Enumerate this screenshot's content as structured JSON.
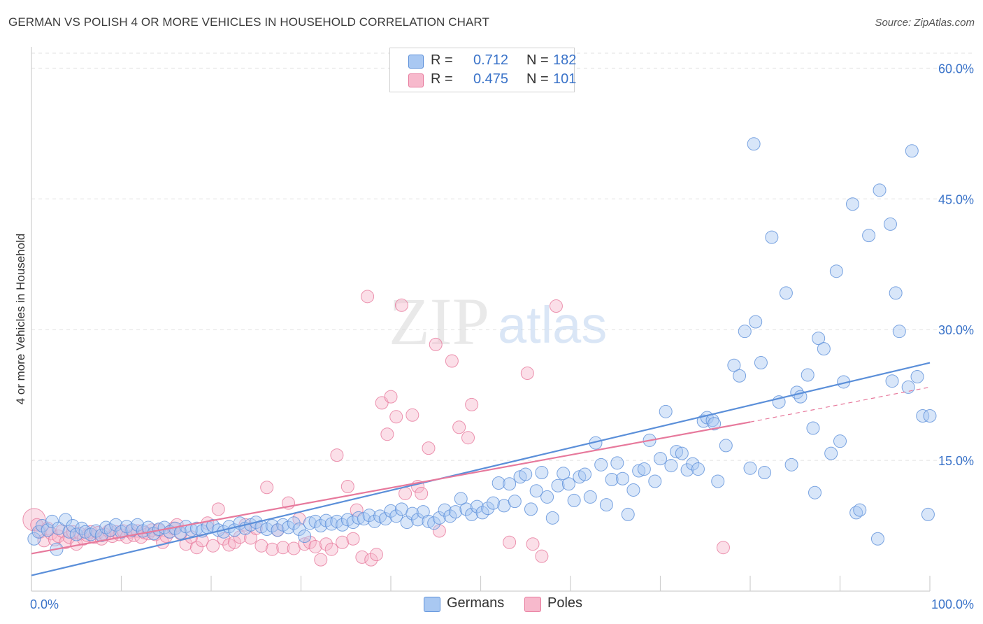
{
  "header": {
    "title": "GERMAN VS POLISH 4 OR MORE VEHICLES IN HOUSEHOLD CORRELATION CHART",
    "source": "Source: ZipAtlas.com"
  },
  "watermark": {
    "zip": "ZIP",
    "atlas": "atlas"
  },
  "stats_legend": [
    {
      "series": "Germans",
      "r_label": "R =",
      "r_value": "0.712",
      "n_label": "N =",
      "n_value": "182",
      "color": "#a9c8f2"
    },
    {
      "series": "Poles",
      "r_label": "R =",
      "r_value": "0.475",
      "n_label": "N =",
      "n_value": "101",
      "color": "#f7b9cc"
    }
  ],
  "legend": [
    {
      "label": "Germans",
      "color": "#a9c8f2"
    },
    {
      "label": "Poles",
      "color": "#f7b9cc"
    }
  ],
  "chart_data": {
    "type": "scatter",
    "title": "GERMAN VS POLISH 4 OR MORE VEHICLES IN HOUSEHOLD CORRELATION CHART",
    "xlabel": "",
    "ylabel": "4 or more Vehicles in Household",
    "xlim": [
      0,
      100
    ],
    "ylim": [
      0,
      63
    ],
    "x_tick_labels": [
      "0.0%",
      "100.0%"
    ],
    "y_ticks": [
      15,
      30,
      45,
      60
    ],
    "y_tick_labels": [
      "15.0%",
      "30.0%",
      "45.0%",
      "60.0%"
    ],
    "grid": true,
    "legend_position": "bottom",
    "series": [
      {
        "name": "Germans",
        "color": "#5b8fd9",
        "fill": "#a9c8f2",
        "trend": {
          "x": [
            0,
            100
          ],
          "y": [
            1.8,
            26.2
          ]
        },
        "points": [
          [
            0.3,
            6.0
          ],
          [
            0.8,
            6.8
          ],
          [
            1.2,
            7.5
          ],
          [
            1.8,
            7.0
          ],
          [
            2.3,
            8.0
          ],
          [
            2.8,
            4.8
          ],
          [
            3.0,
            7.2
          ],
          [
            3.8,
            8.2
          ],
          [
            4.2,
            6.8
          ],
          [
            4.6,
            7.5
          ],
          [
            5.0,
            6.5
          ],
          [
            5.6,
            7.2
          ],
          [
            6.0,
            6.8
          ],
          [
            6.6,
            6.5
          ],
          [
            7.2,
            6.9
          ],
          [
            7.8,
            6.4
          ],
          [
            8.3,
            7.3
          ],
          [
            8.8,
            7.0
          ],
          [
            9.4,
            7.6
          ],
          [
            10.0,
            6.8
          ],
          [
            10.6,
            7.4
          ],
          [
            11.2,
            7.0
          ],
          [
            11.8,
            7.6
          ],
          [
            12.4,
            6.9
          ],
          [
            13.0,
            7.3
          ],
          [
            13.6,
            6.6
          ],
          [
            14.2,
            7.1
          ],
          [
            14.8,
            7.3
          ],
          [
            15.4,
            6.8
          ],
          [
            16.0,
            7.2
          ],
          [
            16.6,
            6.7
          ],
          [
            17.2,
            7.4
          ],
          [
            17.8,
            7.0
          ],
          [
            18.4,
            7.2
          ],
          [
            19.0,
            6.9
          ],
          [
            19.6,
            7.3
          ],
          [
            20.2,
            7.5
          ],
          [
            20.8,
            7.0
          ],
          [
            21.4,
            6.8
          ],
          [
            22.0,
            7.4
          ],
          [
            22.6,
            7.0
          ],
          [
            23.2,
            7.8
          ],
          [
            23.8,
            7.2
          ],
          [
            24.4,
            7.6
          ],
          [
            25.0,
            7.9
          ],
          [
            25.6,
            7.4
          ],
          [
            26.2,
            7.1
          ],
          [
            26.8,
            7.5
          ],
          [
            27.4,
            7.0
          ],
          [
            28.0,
            7.6
          ],
          [
            28.6,
            7.3
          ],
          [
            29.2,
            7.8
          ],
          [
            29.8,
            7.1
          ],
          [
            30.4,
            6.3
          ],
          [
            31.0,
            7.8
          ],
          [
            31.6,
            8.0
          ],
          [
            32.2,
            7.5
          ],
          [
            32.8,
            8.1
          ],
          [
            33.4,
            7.7
          ],
          [
            34.0,
            8.0
          ],
          [
            34.6,
            7.6
          ],
          [
            35.2,
            8.2
          ],
          [
            35.8,
            7.9
          ],
          [
            36.4,
            8.4
          ],
          [
            37.0,
            8.3
          ],
          [
            37.6,
            8.7
          ],
          [
            38.2,
            8.0
          ],
          [
            38.8,
            8.6
          ],
          [
            39.4,
            8.3
          ],
          [
            40.0,
            9.2
          ],
          [
            40.6,
            8.6
          ],
          [
            41.2,
            9.4
          ],
          [
            41.8,
            7.9
          ],
          [
            42.4,
            8.9
          ],
          [
            43.0,
            8.2
          ],
          [
            43.6,
            9.1
          ],
          [
            44.2,
            8.0
          ],
          [
            44.8,
            7.8
          ],
          [
            45.4,
            8.4
          ],
          [
            46.0,
            9.3
          ],
          [
            46.6,
            8.6
          ],
          [
            47.2,
            9.1
          ],
          [
            47.8,
            10.6
          ],
          [
            48.4,
            9.4
          ],
          [
            49.0,
            8.8
          ],
          [
            49.6,
            9.7
          ],
          [
            50.2,
            9.0
          ],
          [
            50.8,
            9.5
          ],
          [
            51.4,
            10.1
          ],
          [
            52.0,
            12.4
          ],
          [
            52.6,
            9.8
          ],
          [
            53.2,
            12.3
          ],
          [
            53.8,
            10.3
          ],
          [
            54.4,
            13.1
          ],
          [
            55.0,
            13.4
          ],
          [
            55.6,
            9.4
          ],
          [
            56.2,
            11.5
          ],
          [
            56.8,
            13.6
          ],
          [
            57.4,
            10.8
          ],
          [
            58.0,
            8.4
          ],
          [
            58.6,
            12.1
          ],
          [
            59.2,
            13.5
          ],
          [
            59.8,
            12.3
          ],
          [
            60.4,
            10.4
          ],
          [
            61.0,
            13.1
          ],
          [
            61.6,
            13.4
          ],
          [
            62.2,
            10.8
          ],
          [
            62.8,
            17.0
          ],
          [
            63.4,
            14.5
          ],
          [
            64.0,
            9.9
          ],
          [
            64.6,
            12.8
          ],
          [
            65.2,
            14.7
          ],
          [
            65.8,
            12.9
          ],
          [
            66.4,
            8.8
          ],
          [
            67.0,
            11.6
          ],
          [
            67.6,
            13.8
          ],
          [
            68.2,
            14.0
          ],
          [
            68.8,
            17.3
          ],
          [
            69.4,
            12.6
          ],
          [
            70.0,
            15.2
          ],
          [
            70.6,
            20.6
          ],
          [
            71.2,
            14.4
          ],
          [
            71.8,
            16.0
          ],
          [
            72.4,
            15.8
          ],
          [
            73.0,
            13.9
          ],
          [
            73.6,
            14.6
          ],
          [
            74.2,
            14.0
          ],
          [
            74.8,
            19.5
          ],
          [
            75.2,
            19.9
          ],
          [
            75.8,
            19.6
          ],
          [
            76.4,
            12.6
          ],
          [
            77.3,
            16.7
          ],
          [
            78.2,
            25.9
          ],
          [
            78.8,
            24.7
          ],
          [
            79.4,
            29.8
          ],
          [
            80.0,
            14.1
          ],
          [
            80.6,
            30.9
          ],
          [
            81.2,
            26.2
          ],
          [
            81.6,
            13.6
          ],
          [
            82.4,
            40.6
          ],
          [
            83.2,
            21.7
          ],
          [
            84.0,
            34.2
          ],
          [
            84.6,
            14.5
          ],
          [
            85.2,
            22.8
          ],
          [
            85.6,
            22.3
          ],
          [
            86.4,
            24.8
          ],
          [
            87.2,
            11.3
          ],
          [
            87.6,
            29.0
          ],
          [
            88.2,
            27.8
          ],
          [
            89.0,
            15.8
          ],
          [
            89.6,
            36.7
          ],
          [
            90.4,
            24.0
          ],
          [
            91.4,
            44.4
          ],
          [
            91.8,
            9.0
          ],
          [
            92.2,
            9.3
          ],
          [
            93.2,
            40.8
          ],
          [
            94.2,
            6.0
          ],
          [
            94.4,
            46.0
          ],
          [
            95.6,
            42.1
          ],
          [
            95.8,
            24.1
          ],
          [
            96.2,
            34.2
          ],
          [
            96.6,
            29.8
          ],
          [
            97.6,
            23.4
          ],
          [
            98.0,
            50.5
          ],
          [
            98.6,
            24.6
          ],
          [
            99.2,
            20.1
          ],
          [
            99.8,
            8.8
          ],
          [
            100.0,
            20.1
          ],
          [
            80.4,
            51.3
          ],
          [
            87.0,
            18.7
          ],
          [
            76.0,
            19.2
          ],
          [
            90.0,
            17.2
          ]
        ]
      },
      {
        "name": "Poles",
        "color": "#e7799c",
        "fill": "#f7b9cc",
        "trend": {
          "x": [
            0,
            80
          ],
          "y": [
            4.3,
            19.4
          ]
        },
        "trend_extension": {
          "x": [
            80,
            100
          ],
          "y": [
            19.4,
            23.4
          ]
        },
        "points": [
          [
            0.3,
            8.2
          ],
          [
            0.6,
            7.6
          ],
          [
            1.0,
            6.8
          ],
          [
            1.4,
            5.8
          ],
          [
            1.8,
            7.2
          ],
          [
            2.2,
            6.6
          ],
          [
            2.6,
            5.9
          ],
          [
            3.0,
            6.3
          ],
          [
            3.4,
            6.9
          ],
          [
            3.8,
            5.6
          ],
          [
            4.2,
            6.2
          ],
          [
            4.6,
            6.8
          ],
          [
            5.0,
            5.4
          ],
          [
            5.4,
            6.6
          ],
          [
            5.8,
            6.0
          ],
          [
            6.2,
            6.4
          ],
          [
            6.6,
            6.8
          ],
          [
            7.0,
            6.2
          ],
          [
            7.4,
            6.7
          ],
          [
            7.8,
            6.0
          ],
          [
            8.2,
            6.5
          ],
          [
            8.6,
            6.9
          ],
          [
            9.0,
            6.3
          ],
          [
            9.4,
            6.8
          ],
          [
            9.8,
            6.5
          ],
          [
            10.2,
            6.9
          ],
          [
            10.6,
            6.2
          ],
          [
            11.0,
            6.8
          ],
          [
            11.4,
            6.4
          ],
          [
            11.8,
            6.9
          ],
          [
            12.2,
            6.2
          ],
          [
            12.6,
            6.7
          ],
          [
            13.0,
            6.6
          ],
          [
            13.4,
            7.0
          ],
          [
            13.8,
            6.5
          ],
          [
            14.2,
            7.0
          ],
          [
            14.6,
            5.6
          ],
          [
            15.0,
            6.3
          ],
          [
            15.4,
            6.8
          ],
          [
            15.8,
            7.2
          ],
          [
            16.2,
            7.6
          ],
          [
            16.6,
            6.6
          ],
          [
            17.2,
            5.4
          ],
          [
            17.8,
            6.2
          ],
          [
            18.4,
            5.0
          ],
          [
            19.0,
            5.8
          ],
          [
            19.6,
            7.8
          ],
          [
            20.2,
            5.2
          ],
          [
            20.8,
            9.4
          ],
          [
            21.4,
            6.0
          ],
          [
            22.0,
            5.3
          ],
          [
            22.6,
            5.6
          ],
          [
            23.2,
            6.2
          ],
          [
            23.8,
            7.6
          ],
          [
            24.4,
            6.1
          ],
          [
            25.0,
            7.2
          ],
          [
            25.6,
            5.2
          ],
          [
            26.2,
            11.9
          ],
          [
            26.8,
            4.8
          ],
          [
            27.4,
            7.0
          ],
          [
            28.0,
            5.0
          ],
          [
            28.6,
            10.1
          ],
          [
            29.2,
            4.9
          ],
          [
            29.8,
            8.3
          ],
          [
            30.4,
            5.4
          ],
          [
            31.0,
            5.6
          ],
          [
            31.6,
            5.1
          ],
          [
            32.2,
            3.6
          ],
          [
            32.8,
            5.4
          ],
          [
            33.4,
            4.8
          ],
          [
            34.0,
            15.6
          ],
          [
            34.6,
            5.6
          ],
          [
            35.2,
            12.0
          ],
          [
            35.8,
            6.0
          ],
          [
            36.2,
            9.3
          ],
          [
            36.8,
            3.9
          ],
          [
            37.4,
            33.8
          ],
          [
            37.8,
            3.6
          ],
          [
            38.4,
            4.2
          ],
          [
            39.0,
            21.6
          ],
          [
            39.6,
            18.0
          ],
          [
            40.0,
            22.3
          ],
          [
            40.6,
            20.0
          ],
          [
            41.2,
            32.8
          ],
          [
            41.6,
            11.2
          ],
          [
            42.4,
            20.2
          ],
          [
            43.0,
            12.0
          ],
          [
            43.4,
            11.2
          ],
          [
            44.2,
            16.4
          ],
          [
            45.0,
            28.3
          ],
          [
            45.4,
            6.9
          ],
          [
            46.8,
            26.4
          ],
          [
            47.6,
            18.8
          ],
          [
            48.6,
            17.6
          ],
          [
            49.0,
            21.4
          ],
          [
            53.2,
            5.6
          ],
          [
            55.2,
            25.0
          ],
          [
            55.8,
            5.4
          ],
          [
            56.8,
            4.0
          ],
          [
            58.4,
            32.7
          ],
          [
            77.0,
            5.0
          ]
        ]
      }
    ]
  }
}
